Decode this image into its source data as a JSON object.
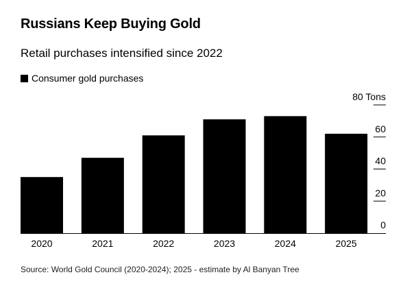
{
  "title": "Russians Keep Buying Gold",
  "subtitle": "Retail purchases intensified since 2022",
  "legend": {
    "label": "Consumer gold purchases",
    "color": "#000000"
  },
  "source": "Source: World Gold Council (2020-2024); 2025 - estimate by Al Banyan Tree",
  "chart_data": {
    "type": "bar",
    "categories": [
      "2020",
      "2021",
      "2022",
      "2023",
      "2024",
      "2025"
    ],
    "series": [
      {
        "name": "Consumer gold purchases",
        "values": [
          35,
          47,
          61,
          71,
          73,
          62
        ]
      }
    ],
    "ylim": [
      0,
      80
    ],
    "yticks": [
      {
        "value": 0,
        "label": "0"
      },
      {
        "value": 20,
        "label": "20"
      },
      {
        "value": 40,
        "label": "40"
      },
      {
        "value": 60,
        "label": "60"
      },
      {
        "value": 80,
        "label": "80 Tons"
      }
    ],
    "grid": false,
    "yaxis_side": "right",
    "legend_position": "top-left",
    "bar_color": "#000000"
  }
}
